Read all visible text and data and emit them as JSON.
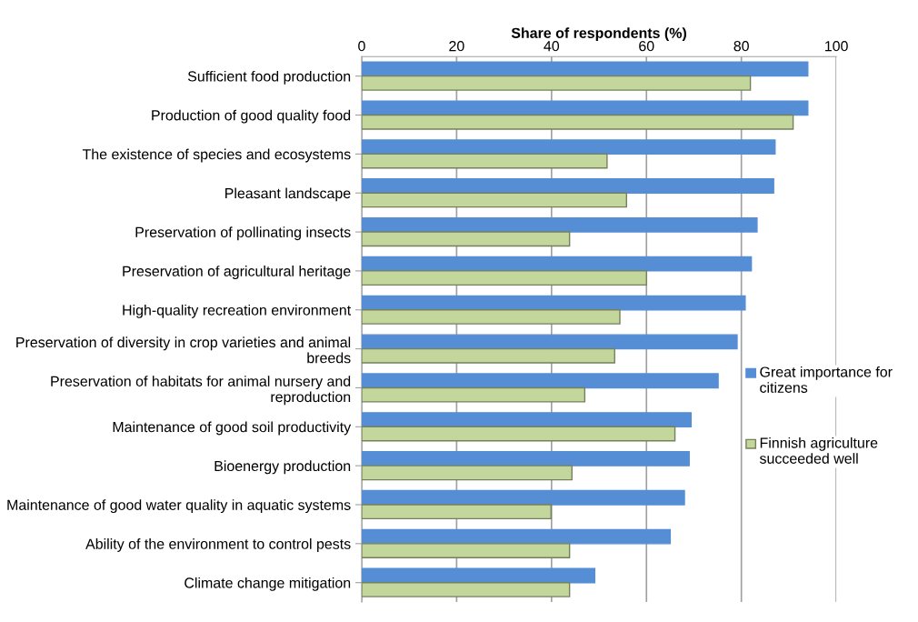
{
  "chart_data": {
    "type": "bar",
    "orientation": "horizontal",
    "xlabel": "Share of respondents (%)",
    "categories": [
      "Sufficient food production",
      "Production of good quality food",
      "The existence of species and ecosystems",
      "Pleasant landscape",
      "Preservation of pollinating insects",
      "Preservation of agricultural heritage",
      "High-quality recreation environment",
      "Preservation of diversity in crop varieties and animal breeds",
      "Preservation of habitats for animal nursery and reproduction",
      "Maintenance of good soil productivity",
      "Bioenergy production",
      "Maintenance of good water quality in aquatic systems",
      "Ability of the environment to control pests",
      "Climate change mitigation"
    ],
    "series": [
      {
        "name": "Great importance for citizens",
        "color": "#558ed5",
        "values": [
          94.0,
          94.0,
          87.1,
          86.8,
          83.3,
          82.1,
          80.8,
          79.1,
          75.1,
          69.4,
          69.0,
          68.0,
          65.0,
          49.1
        ]
      },
      {
        "name": "Finnish agriculture succeeded well",
        "color": "#c3d69b",
        "values": [
          81.9,
          90.9,
          51.7,
          55.8,
          43.8,
          60.0,
          54.4,
          53.3,
          47.0,
          66.0,
          44.3,
          39.9,
          43.8,
          43.8
        ]
      }
    ],
    "xlim": [
      0,
      100
    ],
    "xticks": [
      0,
      20,
      40,
      60,
      80,
      100
    ],
    "grid": "x",
    "legend": "right"
  }
}
